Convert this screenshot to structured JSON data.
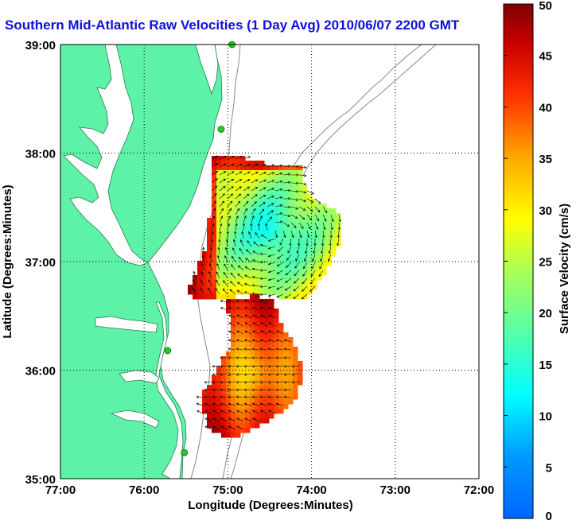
{
  "title": "Southern Mid-Atlantic Raw Velocities (1 Day Avg) 2010/06/07 2200 GMT",
  "map": {
    "xlabel": "Longitude (Degrees:Minutes)",
    "ylabel": "Latitude (Degrees:Minutes)",
    "x_ticks": [
      "77:00",
      "76:00",
      "75:00",
      "74:00",
      "73:00",
      "72:00"
    ],
    "y_ticks": [
      "39:00",
      "38:00",
      "37:00",
      "36:00",
      "35:00"
    ],
    "x_range": [
      -77,
      -72
    ],
    "y_range": [
      35,
      39
    ],
    "grid": "dotted",
    "land_color": "#5df2a8",
    "sea_color": "#ffffff",
    "station_color": "#22cc22"
  },
  "colorbar": {
    "label": "Surface Velocity (cm/s)",
    "ticks": [
      "50",
      "45",
      "40",
      "35",
      "30",
      "25",
      "20",
      "15",
      "10",
      "5",
      "0"
    ],
    "range": [
      0,
      50
    ],
    "colormap": "jet"
  },
  "stations": [
    {
      "lon": -74.95,
      "lat": 39.0
    },
    {
      "lon": -75.08,
      "lat": 38.22
    },
    {
      "lon": -75.72,
      "lat": 36.18
    },
    {
      "lon": -75.52,
      "lat": 35.24
    }
  ]
}
